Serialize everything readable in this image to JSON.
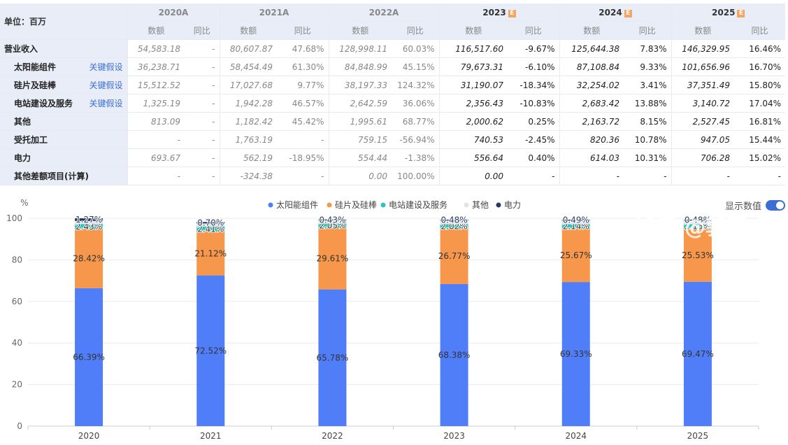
{
  "table": {
    "unit_label": "单位：百万",
    "years": [
      {
        "label": "2020A",
        "estimate": false
      },
      {
        "label": "2021A",
        "estimate": false
      },
      {
        "label": "2022A",
        "estimate": false
      },
      {
        "label": "2023",
        "estimate": true
      },
      {
        "label": "2024",
        "estimate": true
      },
      {
        "label": "2025",
        "estimate": true
      }
    ],
    "estimate_badge": "E",
    "col_value": "数额",
    "col_yoy": "同比",
    "rows": [
      {
        "name": "营业收入",
        "indent": false,
        "link": "",
        "cells": [
          [
            "54,583.18",
            "-"
          ],
          [
            "80,607.87",
            "47.68%"
          ],
          [
            "128,998.11",
            "60.03%"
          ],
          [
            "116,517.60",
            "-9.67%"
          ],
          [
            "125,644.38",
            "7.83%"
          ],
          [
            "146,329.95",
            "16.46%"
          ]
        ]
      },
      {
        "name": "太阳能组件",
        "indent": true,
        "link": "关键假设",
        "cells": [
          [
            "36,238.71",
            "-"
          ],
          [
            "58,454.49",
            "61.30%"
          ],
          [
            "84,848.99",
            "45.15%"
          ],
          [
            "79,673.31",
            "-6.10%"
          ],
          [
            "87,108.84",
            "9.33%"
          ],
          [
            "101,656.96",
            "16.70%"
          ]
        ]
      },
      {
        "name": "硅片及硅棒",
        "indent": true,
        "link": "关键假设",
        "cells": [
          [
            "15,512.52",
            "-"
          ],
          [
            "17,027.68",
            "9.77%"
          ],
          [
            "38,197.33",
            "124.32%"
          ],
          [
            "31,190.07",
            "-18.34%"
          ],
          [
            "32,254.02",
            "3.41%"
          ],
          [
            "37,351.49",
            "15.80%"
          ]
        ]
      },
      {
        "name": "电站建设及服务",
        "indent": true,
        "link": "关键假设",
        "cells": [
          [
            "1,325.19",
            "-"
          ],
          [
            "1,942.28",
            "46.57%"
          ],
          [
            "2,642.59",
            "36.06%"
          ],
          [
            "2,356.43",
            "-10.83%"
          ],
          [
            "2,683.42",
            "13.88%"
          ],
          [
            "3,140.72",
            "17.04%"
          ]
        ]
      },
      {
        "name": "其他",
        "indent": true,
        "link": "",
        "cells": [
          [
            "813.09",
            "-"
          ],
          [
            "1,182.42",
            "45.42%"
          ],
          [
            "1,995.61",
            "68.77%"
          ],
          [
            "2,000.62",
            "0.25%"
          ],
          [
            "2,163.72",
            "8.15%"
          ],
          [
            "2,527.45",
            "16.81%"
          ]
        ]
      },
      {
        "name": "受托加工",
        "indent": true,
        "link": "",
        "cells": [
          [
            "-",
            "-"
          ],
          [
            "1,763.19",
            "-"
          ],
          [
            "759.15",
            "-56.94%"
          ],
          [
            "740.53",
            "-2.45%"
          ],
          [
            "820.36",
            "10.78%"
          ],
          [
            "947.05",
            "15.44%"
          ]
        ]
      },
      {
        "name": "电力",
        "indent": true,
        "link": "",
        "cells": [
          [
            "693.67",
            "-"
          ],
          [
            "562.19",
            "-18.95%"
          ],
          [
            "554.44",
            "-1.38%"
          ],
          [
            "556.64",
            "0.40%"
          ],
          [
            "614.03",
            "10.31%"
          ],
          [
            "706.28",
            "15.02%"
          ]
        ]
      },
      {
        "name": "其他差额项目(计算)",
        "indent": true,
        "link": "",
        "cells": [
          [
            "-",
            "-"
          ],
          [
            "-324.38",
            "-"
          ],
          [
            "0.00",
            "100.00%"
          ],
          [
            "0.00",
            "-"
          ],
          [
            "-",
            "-"
          ],
          [
            "-",
            "-"
          ]
        ]
      }
    ]
  },
  "toggle_label": "显示数值",
  "watermark": "知乎 @郭百一",
  "chart_data": {
    "type": "bar",
    "stacked": true,
    "ylabel": "%",
    "ylim": [
      0,
      100
    ],
    "yticks": [
      0,
      20,
      40,
      60,
      80,
      100
    ],
    "categories": [
      "2020",
      "2021",
      "2022",
      "2023",
      "2024",
      "2025"
    ],
    "legend_position": "top-center",
    "grid": true,
    "series": [
      {
        "name": "太阳能组件",
        "color": "#4f7ef8",
        "values": [
          66.39,
          72.52,
          65.78,
          68.38,
          69.33,
          69.47
        ],
        "labels": [
          "66.39%",
          "72.52%",
          "65.78%",
          "68.38%",
          "69.33%",
          "69.47%"
        ]
      },
      {
        "name": "硅片及硅棒",
        "color": "#f7974b",
        "values": [
          28.42,
          21.12,
          29.61,
          26.77,
          25.67,
          25.53
        ],
        "labels": [
          "28.42%",
          "21.12%",
          "29.61%",
          "26.77%",
          "25.67%",
          "25.53%"
        ]
      },
      {
        "name": "电站建设及服务",
        "color": "#2ec4b6",
        "values": [
          2.43,
          2.41,
          2.05,
          2.02,
          2.14,
          2.15
        ],
        "labels": [
          "2.43%",
          "2.41%",
          "2.05%",
          "2.02%",
          "2.14%",
          "2.15%"
        ]
      },
      {
        "name": "其他",
        "color": "#dfe3ea",
        "values": [
          1.49,
          1.47,
          1.55,
          1.72,
          1.72,
          1.72
        ],
        "labels": [
          "",
          "",
          "",
          "",
          "",
          ""
        ]
      },
      {
        "name": "电力",
        "color": "#2a3a5e",
        "values": [
          1.27,
          0.7,
          0.43,
          0.48,
          0.49,
          0.48
        ],
        "labels": [
          "1.27%",
          "0.70%",
          "0.43%",
          "0.48%",
          "0.49%",
          "0.48%"
        ]
      }
    ]
  }
}
